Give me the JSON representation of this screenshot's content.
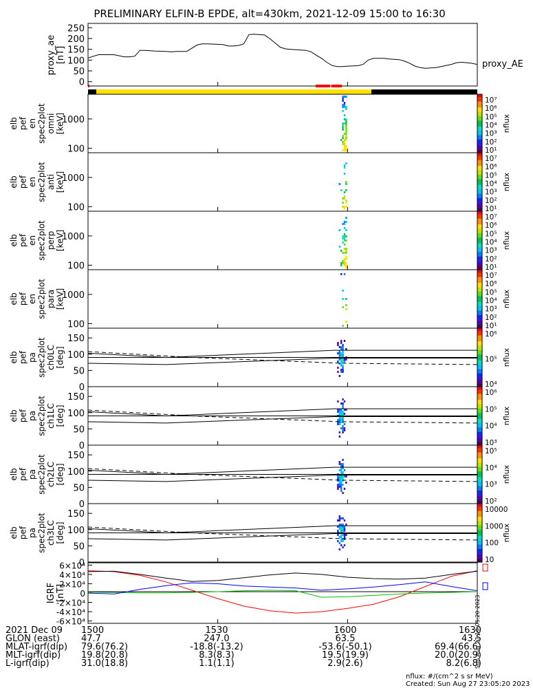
{
  "title": "PRELIMINARY ELFIN-B EPDE, alt=430km, 2021-12-09 15:00 to 16:30",
  "colors": {
    "bar_yellow": "#ffe000",
    "bar_black": "#000000",
    "bar_red": "#ff0000",
    "igrf_x": "#ff0000",
    "igrf_y": "#00c000",
    "igrf_z": "#0000ff",
    "igrf_total": "#000000"
  },
  "chart_data": [
    {
      "type": "line",
      "panel": "proxy_ae",
      "ylabel": [
        "proxy_ae",
        "[nT]"
      ],
      "series_label": "proxy_AE",
      "ylim": [
        -20,
        270
      ],
      "yticks": [
        0,
        50,
        100,
        150,
        200,
        250
      ],
      "x": [
        15.0,
        15.04,
        15.08,
        15.1,
        15.14,
        15.16,
        15.18,
        15.2,
        15.22,
        15.26,
        15.3,
        15.32,
        15.34,
        15.38,
        15.42,
        15.44,
        15.46,
        15.52,
        15.54,
        15.56,
        15.58,
        15.6,
        15.62,
        15.64,
        15.66,
        15.68,
        15.7,
        15.72,
        15.74,
        15.76,
        15.78,
        15.8,
        15.84,
        15.86,
        15.88,
        15.9,
        15.92,
        15.94,
        15.96,
        15.98,
        16.0,
        16.04,
        16.06,
        16.08,
        16.1,
        16.14,
        16.16,
        16.2,
        16.22,
        16.24,
        16.26,
        16.28,
        16.3,
        16.34,
        16.36,
        16.4,
        16.42,
        16.44,
        16.46,
        16.48,
        16.5
      ],
      "values": [
        110,
        125,
        125,
        125,
        115,
        115,
        118,
        145,
        145,
        142,
        140,
        138,
        140,
        140,
        170,
        175,
        175,
        172,
        165,
        165,
        168,
        175,
        218,
        220,
        218,
        216,
        200,
        180,
        160,
        152,
        150,
        148,
        145,
        138,
        122,
        108,
        90,
        75,
        70,
        70,
        72,
        74,
        80,
        100,
        108,
        108,
        105,
        102,
        95,
        85,
        72,
        65,
        62,
        65,
        70,
        80,
        88,
        90,
        88,
        85,
        80
      ]
    },
    {
      "type": "heatmap",
      "panel": "spec2plot_omni",
      "ylabel": [
        "elb",
        "pef",
        "en",
        "spec2plot",
        "omni",
        "[keV]"
      ],
      "yscale": "log",
      "yticks": [
        100,
        1000
      ],
      "colorbar": {
        "label": "nflux",
        "ticks": [
          "10⁷",
          "10⁶",
          "10⁵",
          "10⁴",
          "10³",
          "10²",
          "10¹"
        ]
      },
      "active_x": [
        15.96,
        15.998
      ]
    },
    {
      "type": "heatmap",
      "panel": "spec2plot_anti",
      "ylabel": [
        "elb",
        "pef",
        "en",
        "spec2plot",
        "anti",
        "[keV]"
      ],
      "yscale": "log",
      "yticks": [
        100,
        1000
      ],
      "colorbar": {
        "label": "nflux",
        "ticks": [
          "10⁷",
          "10⁶",
          "10⁵",
          "10⁴",
          "10³",
          "10²",
          "10¹"
        ]
      },
      "active_x": [
        15.96,
        15.998
      ]
    },
    {
      "type": "heatmap",
      "panel": "spec2plot_perp",
      "ylabel": [
        "elb",
        "pef",
        "en",
        "spec2plot",
        "perp",
        "[keV]"
      ],
      "yscale": "log",
      "yticks": [
        100,
        1000
      ],
      "colorbar": {
        "label": "nflux",
        "ticks": [
          "10⁷",
          "10⁶",
          "10⁵",
          "10⁴",
          "10³",
          "10²",
          "10¹"
        ]
      },
      "active_x": [
        15.96,
        15.998
      ]
    },
    {
      "type": "heatmap",
      "panel": "spec2plot_para",
      "ylabel": [
        "elb",
        "pef",
        "en",
        "spec2plot",
        "para",
        "[keV]"
      ],
      "yscale": "log",
      "yticks": [
        100,
        1000
      ],
      "colorbar": {
        "label": "nflux",
        "ticks": [
          "10⁷",
          "10⁶",
          "10⁵",
          "10⁴",
          "10³",
          "10²",
          "10¹"
        ]
      },
      "active_x": [
        15.96,
        15.998
      ]
    },
    {
      "type": "heatmap",
      "panel": "spec2plot_ch0LC",
      "ylabel": [
        "elb",
        "pef",
        "pa",
        "spec2plot",
        "ch0LC",
        "[deg]"
      ],
      "ylim": [
        0,
        180
      ],
      "yticks": [
        0,
        50,
        100,
        150
      ],
      "colorbar": {
        "label": "nflux",
        "ticks": [
          "10⁶",
          "10⁵",
          "10⁴"
        ]
      },
      "active_x": [
        15.96,
        15.998
      ]
    },
    {
      "type": "heatmap",
      "panel": "spec2plot_ch1LC",
      "ylabel": [
        "elb",
        "pef",
        "pa",
        "spec2plot",
        "ch1LC",
        "[deg]"
      ],
      "ylim": [
        0,
        180
      ],
      "yticks": [
        0,
        50,
        100,
        150
      ],
      "colorbar": {
        "label": "nflux",
        "ticks": [
          "10⁶",
          "10⁵",
          "10⁴",
          "10³"
        ]
      },
      "active_x": [
        15.96,
        15.998
      ]
    },
    {
      "type": "heatmap",
      "panel": "spec2plot_ch2LC",
      "ylabel": [
        "elb",
        "pef",
        "pa",
        "spec2plot",
        "ch2LC",
        "[deg]"
      ],
      "ylim": [
        0,
        180
      ],
      "yticks": [
        0,
        50,
        100,
        150
      ],
      "colorbar": {
        "label": "nflux",
        "ticks": [
          "10⁵",
          "10⁴",
          "10³",
          "10²"
        ]
      },
      "active_x": [
        15.96,
        15.998
      ]
    },
    {
      "type": "heatmap",
      "panel": "spec2plot_ch3LC",
      "ylabel": [
        "elb",
        "pef",
        "pa",
        "spec2plot",
        "ch3LC",
        "[deg]"
      ],
      "ylim": [
        0,
        180
      ],
      "yticks": [
        0,
        50,
        100,
        150
      ],
      "colorbar": {
        "label": "nflux",
        "ticks": [
          "10000",
          "1000",
          "100",
          "10"
        ]
      },
      "active_x": [
        15.96,
        15.998
      ]
    },
    {
      "type": "line",
      "panel": "IGRF",
      "ylabel": [
        "IGRF",
        "[nT]"
      ],
      "ylim": [
        -65000,
        65000
      ],
      "yticks": [
        "-6×10⁴",
        "-4×10⁴",
        "-2×10⁴",
        "0",
        "2×10⁴",
        "4×10⁴",
        "6×10⁴"
      ],
      "x": [
        15.0,
        15.1,
        15.2,
        15.3,
        15.4,
        15.5,
        15.6,
        15.7,
        15.8,
        15.9,
        16.0,
        16.1,
        16.2,
        16.3,
        16.4,
        16.5
      ],
      "series": [
        {
          "name": "x",
          "color": "#ff0000",
          "values": [
            48000,
            46000,
            38000,
            24000,
            6000,
            -12000,
            -28000,
            -38000,
            -43000,
            -40000,
            -33000,
            -24000,
            -8000,
            14000,
            36000,
            48000
          ]
        },
        {
          "name": "y",
          "color": "#00c000",
          "values": [
            2000,
            1000,
            500,
            500,
            1500,
            3000,
            5000,
            6000,
            5000,
            -9000,
            -8000,
            -5000,
            -2000,
            0,
            1500,
            3000
          ]
        },
        {
          "name": "z",
          "color": "#0000ff",
          "values": [
            0,
            -2000,
            8000,
            16000,
            22000,
            20000,
            15000,
            13000,
            11000,
            6000,
            9000,
            13000,
            18000,
            24000,
            14000,
            5000
          ]
        },
        {
          "name": "total",
          "color": "#000000",
          "values": [
            46000,
            47000,
            40000,
            32000,
            25000,
            27000,
            33000,
            39000,
            43000,
            40000,
            34000,
            31000,
            30000,
            32000,
            40000,
            47000
          ]
        }
      ]
    }
  ],
  "xaxis": {
    "ticks": [
      "1500",
      "1530",
      "1600",
      "1630"
    ],
    "rows": [
      {
        "label": "2021 Dec 09",
        "values": [
          "1500",
          "1530",
          "1600",
          "1630"
        ]
      },
      {
        "label": "GLON (east)",
        "values": [
          "47.7",
          "247.0",
          "63.5",
          "43.5"
        ]
      },
      {
        "label": "MLAT-igrf(dip)",
        "values": [
          "79.6(76.2)",
          "-18.8(-13.2)",
          "-53.6(-50.1)",
          "69.4(66.6)"
        ]
      },
      {
        "label": "MLT-igrf(dip)",
        "values": [
          "19.8(20.8)",
          "8.3(8.3)",
          "19.5(19.9)",
          "20.0(20.9)"
        ]
      },
      {
        "label": "L-igrf(dip)",
        "values": [
          "31.0(18.8)",
          "1.1(1.1)",
          "2.9(2.6)",
          "8.2(6.8)"
        ]
      }
    ]
  },
  "footer": {
    "units": "nflux: #/(cm^2 s sr MeV)",
    "created": "Created: Sun Aug 27 23:05:20 2023",
    "side_stamp": "Sun Aug 27 16:05:20 2023"
  }
}
